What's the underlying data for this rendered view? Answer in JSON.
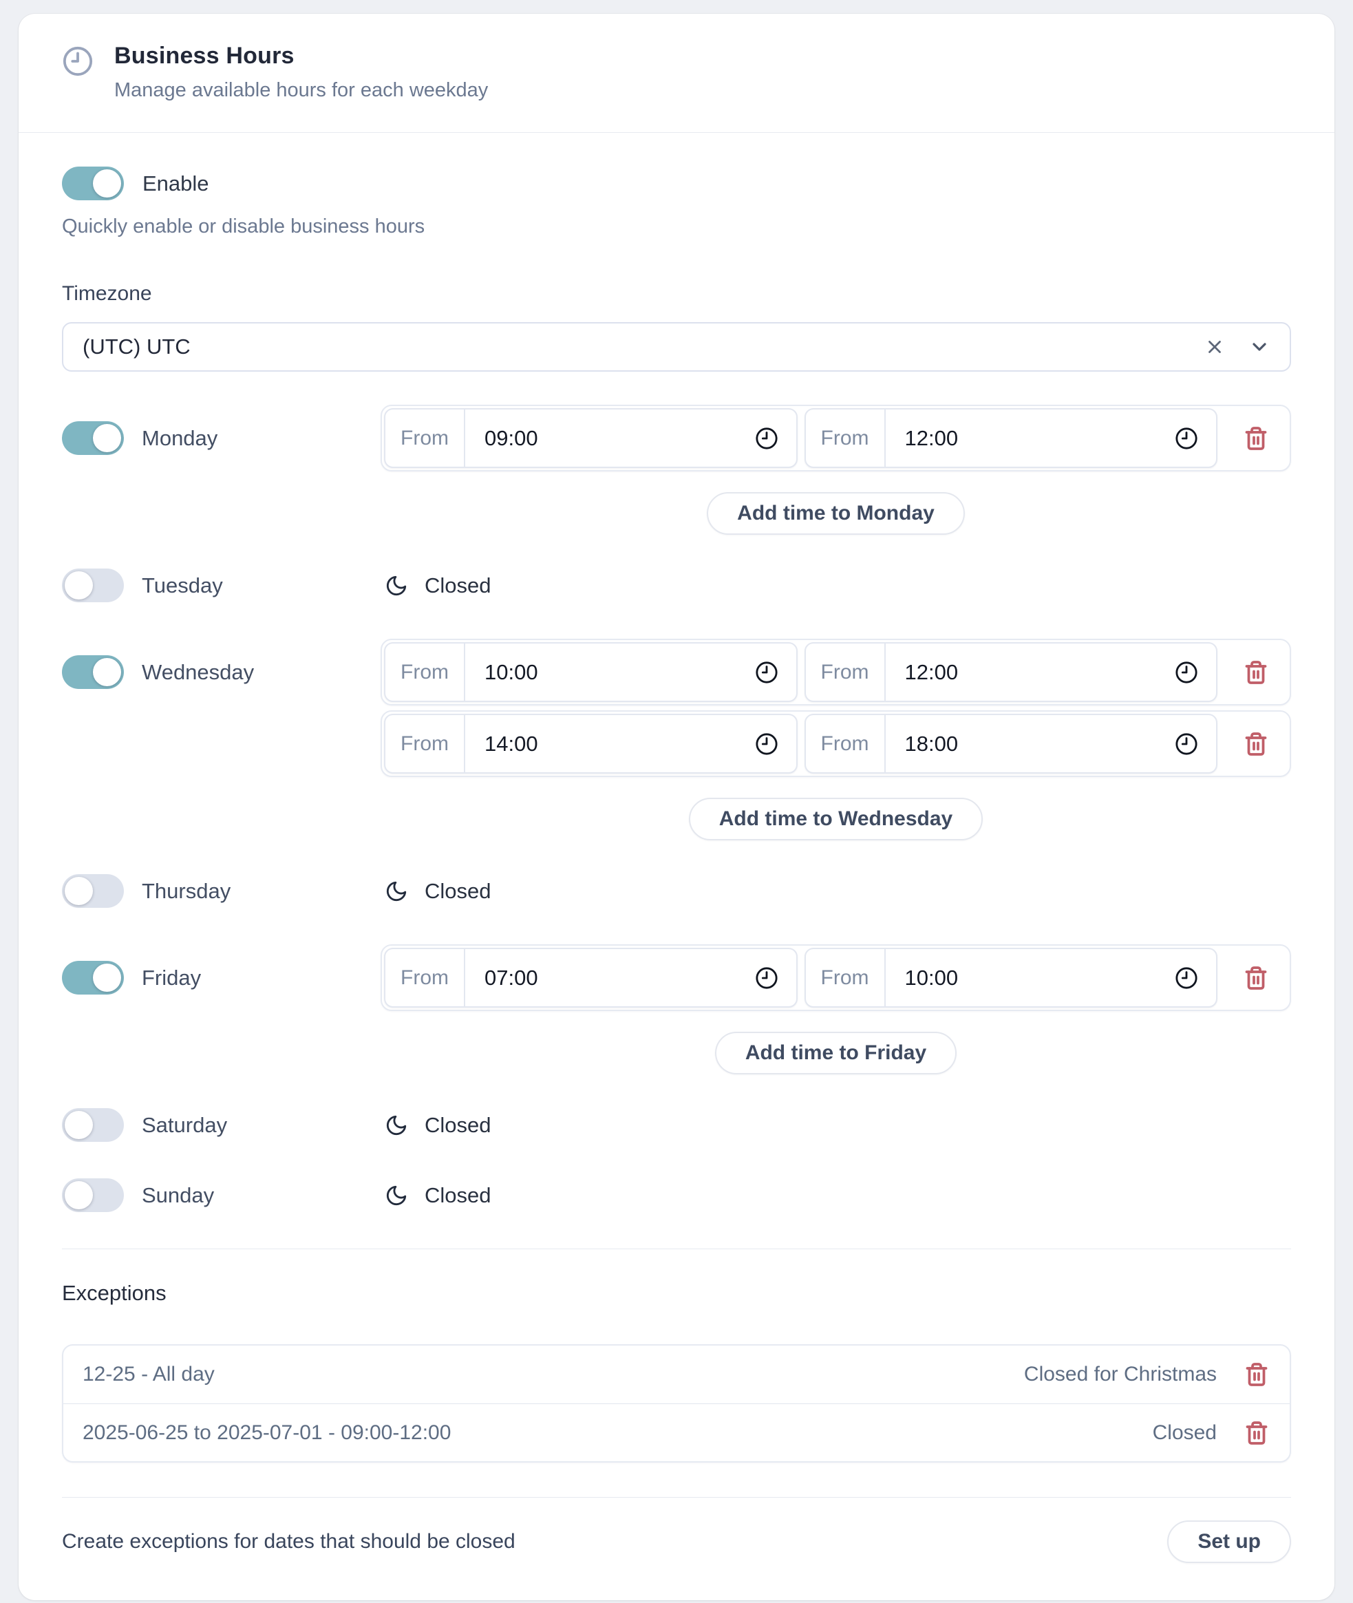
{
  "colors": {
    "accent_teal": "#7fb6c2",
    "toggle_off_track": "#dde2ec",
    "danger_red": "#c05e68",
    "page_background": "#eef0f4",
    "card_background": "#ffffff"
  },
  "header": {
    "icon": "clock-icon",
    "title": "Business Hours",
    "subtitle": "Manage available hours for each weekday"
  },
  "enable": {
    "label": "Enable",
    "description": "Quickly enable or disable business hours",
    "state": "on"
  },
  "timezone": {
    "label": "Timezone",
    "value": "(UTC) UTC",
    "icons": [
      "clear-x-icon",
      "chevron-down-icon"
    ]
  },
  "time_prefix": "From",
  "closed_label": "Closed",
  "days": [
    {
      "name": "Monday",
      "enabled": true,
      "ranges": [
        [
          "09:00",
          "12:00"
        ]
      ],
      "add_label": "Add time to Monday"
    },
    {
      "name": "Tuesday",
      "enabled": false
    },
    {
      "name": "Wednesday",
      "enabled": true,
      "ranges": [
        [
          "10:00",
          "12:00"
        ],
        [
          "14:00",
          "18:00"
        ]
      ],
      "add_label": "Add time to Wednesday"
    },
    {
      "name": "Thursday",
      "enabled": false
    },
    {
      "name": "Friday",
      "enabled": true,
      "ranges": [
        [
          "07:00",
          "10:00"
        ]
      ],
      "add_label": "Add time to Friday"
    },
    {
      "name": "Saturday",
      "enabled": false
    },
    {
      "name": "Sunday",
      "enabled": false
    }
  ],
  "exceptions": {
    "heading": "Exceptions",
    "items": [
      {
        "period": "12-25 - All day",
        "reason": "Closed for Christmas"
      },
      {
        "period": "2025-06-25 to 2025-07-01 - 09:00-12:00",
        "reason": "Closed"
      }
    ],
    "footer_text": "Create exceptions for dates that should be closed",
    "setup_label": "Set up"
  }
}
